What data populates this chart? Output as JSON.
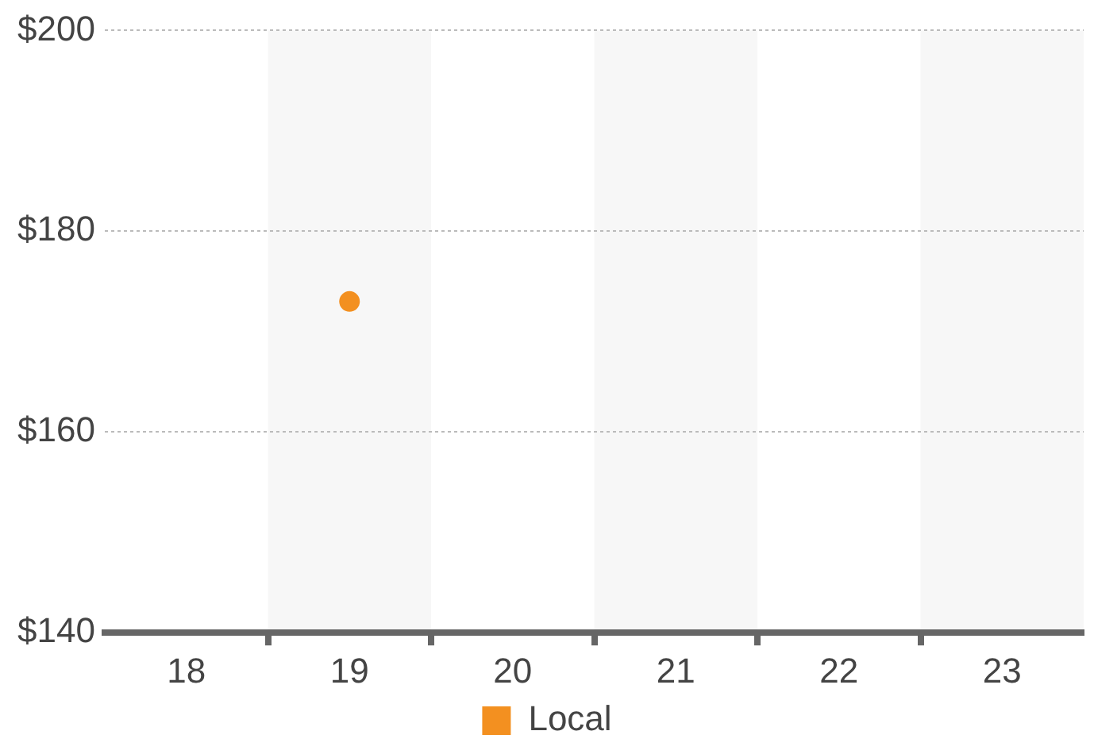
{
  "chart_data": {
    "type": "scatter",
    "categories": [
      "18",
      "19",
      "20",
      "21",
      "22",
      "23"
    ],
    "series": [
      {
        "name": "Local",
        "color": "#f39020",
        "values": [
          null,
          173,
          null,
          null,
          null,
          null
        ]
      }
    ],
    "ylim": [
      140,
      200
    ],
    "yticks": [
      {
        "value": 140,
        "label": "$140"
      },
      {
        "value": 160,
        "label": "$160"
      },
      {
        "value": 180,
        "label": "$180"
      },
      {
        "value": 200,
        "label": "$200"
      }
    ],
    "grid": "y",
    "legend": "bottom",
    "marker": "circle",
    "bands": [
      {
        "axis": "x",
        "from": "19",
        "to": "19",
        "color": "#f7f7f7"
      },
      {
        "axis": "x",
        "from": "21",
        "to": "21",
        "color": "#f7f7f7"
      },
      {
        "axis": "x",
        "from": "23",
        "to": "23",
        "color": "#f7f7f7"
      }
    ]
  }
}
